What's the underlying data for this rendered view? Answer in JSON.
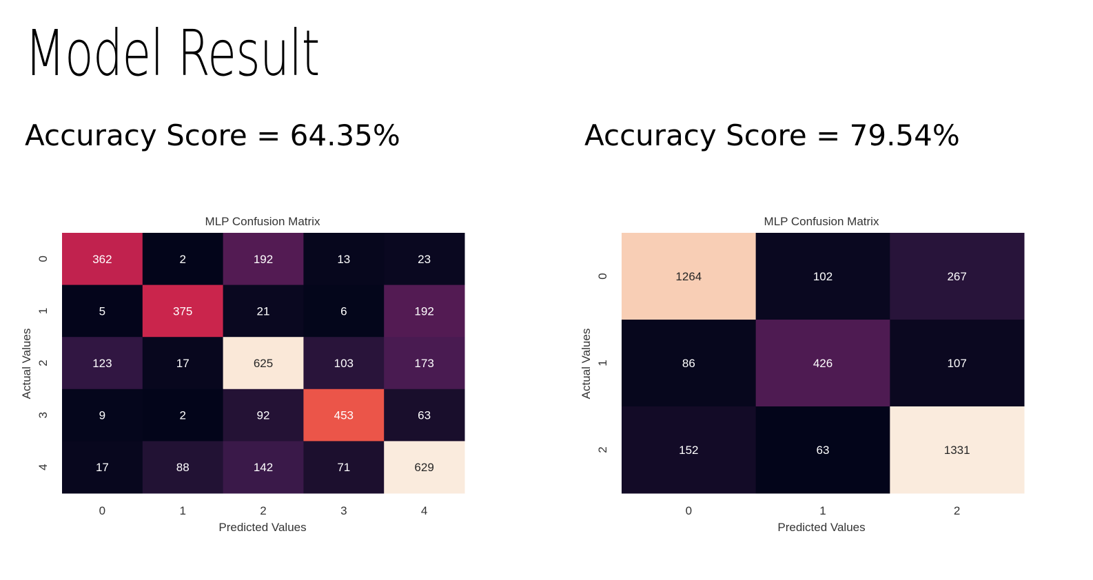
{
  "page": {
    "title": "Model Result",
    "scores": [
      "Accuracy Score = 64.35%",
      "Accuracy Score = 79.54%"
    ]
  },
  "chart_data": [
    {
      "type": "heatmap",
      "title": "MLP Confusion Matrix",
      "xlabel": "Predicted Values",
      "ylabel": "Actual Values",
      "x_categories": [
        "0",
        "1",
        "2",
        "3",
        "4"
      ],
      "y_categories": [
        "0",
        "1",
        "2",
        "3",
        "4"
      ],
      "values": [
        [
          362,
          2,
          192,
          13,
          23
        ],
        [
          5,
          375,
          21,
          6,
          192
        ],
        [
          123,
          17,
          625,
          103,
          173
        ],
        [
          9,
          2,
          92,
          453,
          63
        ],
        [
          17,
          88,
          142,
          71,
          629
        ]
      ],
      "colorscale": "rocket",
      "colorbar": false,
      "annotations": true
    },
    {
      "type": "heatmap",
      "title": "MLP Confusion Matrix",
      "xlabel": "Predicted Values",
      "ylabel": "Actual Values",
      "x_categories": [
        "0",
        "1",
        "2"
      ],
      "y_categories": [
        "0",
        "1",
        "2"
      ],
      "values": [
        [
          1264,
          102,
          267
        ],
        [
          86,
          426,
          107
        ],
        [
          152,
          63,
          1331
        ]
      ],
      "colorscale": "rocket",
      "colorbar": false,
      "annotations": true
    }
  ]
}
